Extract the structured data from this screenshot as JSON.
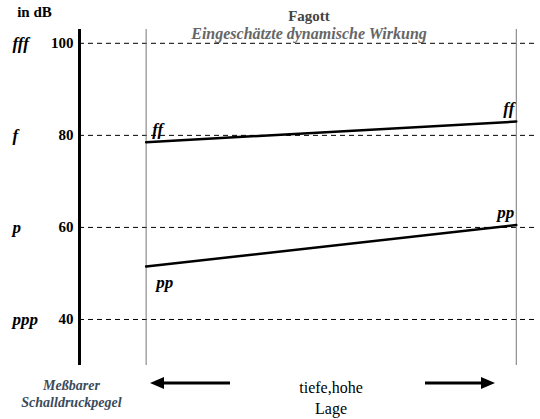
{
  "chart_data": {
    "type": "line",
    "title": "Fagott",
    "subtitle": "Eingeschätzte dynamische Wirkung",
    "y_label": "in dB",
    "x_label": "tiefe,hohe\nLage",
    "annotation": "Meßbarer\nSchalldruckpegel",
    "x": [
      0,
      1
    ],
    "series": [
      {
        "name": "ff",
        "color": "#000000",
        "values": [
          78.5,
          83
        ]
      },
      {
        "name": "pp",
        "color": "#000000",
        "values": [
          51.5,
          60.5
        ]
      }
    ],
    "xlim": [
      -0.18,
      1.06
    ],
    "ylim": [
      30,
      103
    ],
    "yticks": [
      40,
      60,
      80,
      100
    ],
    "ytick_dynamics": [
      "ppp",
      "p",
      "f",
      "fff"
    ],
    "grid": true,
    "tick_labels": "y",
    "line_style": "solid"
  }
}
